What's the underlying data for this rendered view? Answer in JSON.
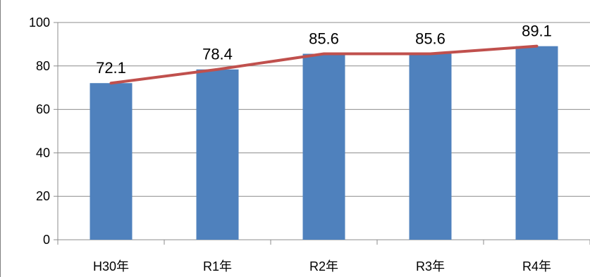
{
  "chart_data": {
    "type": "bar",
    "categories": [
      "H30年",
      "R1年",
      "R2年",
      "R3年",
      "R4年"
    ],
    "series": [
      {
        "type": "bar",
        "values": [
          72.1,
          78.4,
          85.6,
          85.6,
          89.1
        ],
        "color": "#4f81bd"
      },
      {
        "type": "line",
        "values": [
          72.1,
          78.4,
          85.6,
          85.6,
          89.1
        ],
        "color": "#c0504d"
      }
    ],
    "data_labels": [
      "72.1",
      "78.4",
      "85.6",
      "85.6",
      "89.1"
    ],
    "y_ticks": [
      "0",
      "20",
      "40",
      "60",
      "80",
      "100"
    ],
    "ylim": [
      0,
      100
    ],
    "grid": true,
    "title": "",
    "xlabel": "",
    "ylabel": ""
  }
}
